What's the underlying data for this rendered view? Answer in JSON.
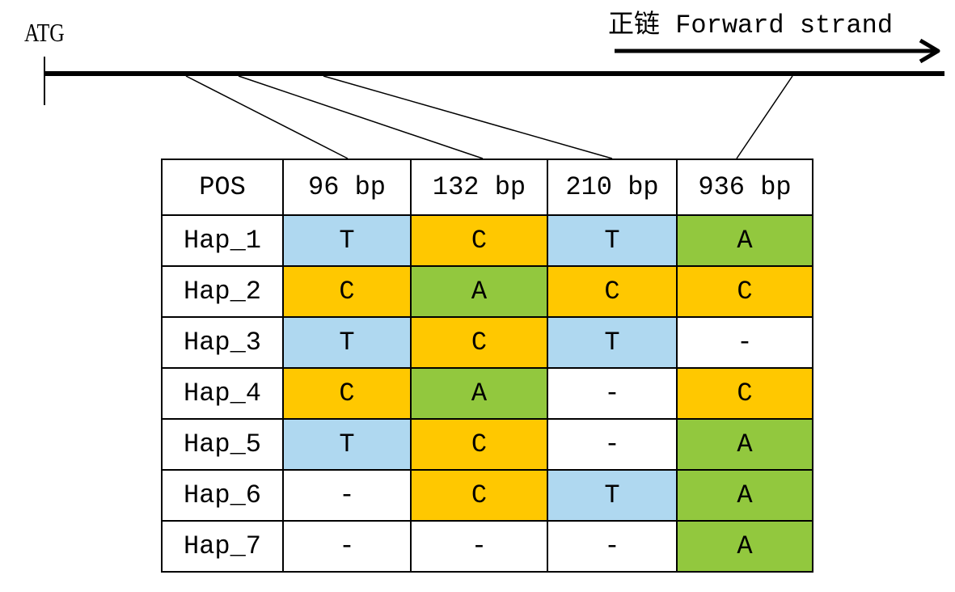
{
  "start_label": "ATG",
  "strand_label": "正链 Forward strand",
  "colors": {
    "T": "#afd8f0",
    "C": "#ffc800",
    "A": "#92c83e",
    "-": "#ffffff"
  },
  "table": {
    "header": [
      "POS",
      "96 bp",
      "132 bp",
      "210 bp",
      "936 bp"
    ],
    "rows": [
      [
        "Hap_1",
        "T",
        "C",
        "T",
        "A"
      ],
      [
        "Hap_2",
        "C",
        "A",
        "C",
        "C"
      ],
      [
        "Hap_3",
        "T",
        "C",
        "T",
        "-"
      ],
      [
        "Hap_4",
        "C",
        "A",
        "-",
        "C"
      ],
      [
        "Hap_5",
        "T",
        "C",
        "-",
        "A"
      ],
      [
        "Hap_6",
        "-",
        "C",
        "T",
        "A"
      ],
      [
        "Hap_7",
        "-",
        "-",
        "-",
        "A"
      ]
    ]
  }
}
